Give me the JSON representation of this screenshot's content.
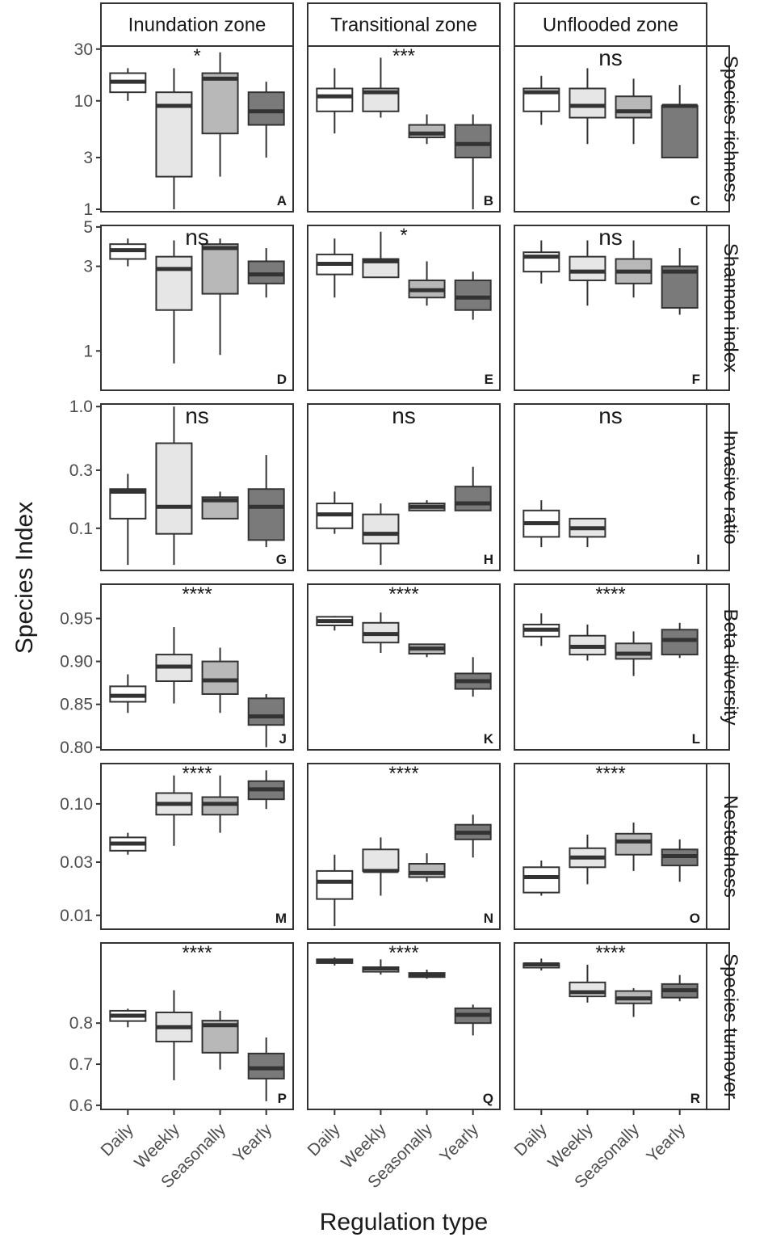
{
  "chart_data": {
    "type": "boxplot",
    "xlabel": "Regulation type",
    "ylabel": "Species Index",
    "categories": [
      "Daily",
      "Weekly",
      "Seasonally",
      "Yearly"
    ],
    "zones": [
      "Inundation zone",
      "Transitional zone",
      "Unflooded zone"
    ],
    "fills": [
      "#ffffff",
      "#e6e6e6",
      "#b8b8b8",
      "#7a7a7a"
    ],
    "rows": [
      {
        "name": "Species richness",
        "scale": "log",
        "ylim": [
          0.95,
          32
        ],
        "ticks": [
          1,
          3,
          10,
          30
        ],
        "tick_labels": [
          "1",
          "3",
          "10",
          "30"
        ],
        "panels": [
          {
            "letter": "A",
            "sig": "*",
            "boxes": [
              {
                "min": 10,
                "q1": 12,
                "median": 15,
                "q3": 18,
                "max": 20
              },
              {
                "min": 1,
                "q1": 2,
                "median": 9,
                "q3": 12,
                "max": 20
              },
              {
                "min": 2,
                "q1": 5,
                "median": 16,
                "q3": 18,
                "max": 28
              },
              {
                "min": 3,
                "q1": 6,
                "median": 8,
                "q3": 12,
                "max": 15
              }
            ]
          },
          {
            "letter": "B",
            "sig": "***",
            "boxes": [
              {
                "min": 5,
                "q1": 8,
                "median": 11,
                "q3": 13,
                "max": 20
              },
              {
                "min": 7,
                "q1": 8,
                "median": 12,
                "q3": 13,
                "max": 25
              },
              {
                "min": 4,
                "q1": 4.6,
                "median": 5,
                "q3": 6,
                "max": 7.5
              },
              {
                "min": 1,
                "q1": 3,
                "median": 4,
                "q3": 6,
                "max": 7.5
              }
            ]
          },
          {
            "letter": "C",
            "sig": "ns",
            "boxes": [
              {
                "min": 6,
                "q1": 8,
                "median": 12,
                "q3": 13,
                "max": 17
              },
              {
                "min": 4,
                "q1": 7,
                "median": 9,
                "q3": 13,
                "max": 20
              },
              {
                "min": 4,
                "q1": 7,
                "median": 8,
                "q3": 11,
                "max": 16
              },
              {
                "min": 3,
                "q1": 3,
                "median": 9,
                "q3": 9,
                "max": 14
              }
            ]
          }
        ]
      },
      {
        "name": "Shannon index",
        "scale": "log",
        "ylim": [
          0.6,
          5.1
        ],
        "ticks": [
          1,
          3,
          5
        ],
        "tick_labels": [
          "1",
          "3",
          "5"
        ],
        "panels": [
          {
            "letter": "D",
            "sig": "ns",
            "boxes": [
              {
                "min": 3,
                "q1": 3.3,
                "median": 3.7,
                "q3": 4,
                "max": 4.3
              },
              {
                "min": 0.85,
                "q1": 1.7,
                "median": 2.9,
                "q3": 3.4,
                "max": 4.2
              },
              {
                "min": 0.95,
                "q1": 2.1,
                "median": 3.8,
                "q3": 4,
                "max": 4.3
              },
              {
                "min": 2,
                "q1": 2.4,
                "median": 2.7,
                "q3": 3.2,
                "max": 3.8
              }
            ]
          },
          {
            "letter": "E",
            "sig": "*",
            "boxes": [
              {
                "min": 2,
                "q1": 2.7,
                "median": 3.1,
                "q3": 3.5,
                "max": 4.3
              },
              {
                "min": 2.6,
                "q1": 2.6,
                "median": 3.2,
                "q3": 3.3,
                "max": 4.7
              },
              {
                "min": 1.8,
                "q1": 2,
                "median": 2.2,
                "q3": 2.5,
                "max": 3.2
              },
              {
                "min": 1.5,
                "q1": 1.7,
                "median": 2,
                "q3": 2.5,
                "max": 2.8
              }
            ]
          },
          {
            "letter": "F",
            "sig": "ns",
            "boxes": [
              {
                "min": 2.4,
                "q1": 2.8,
                "median": 3.4,
                "q3": 3.6,
                "max": 4.2
              },
              {
                "min": 1.8,
                "q1": 2.5,
                "median": 2.8,
                "q3": 3.4,
                "max": 4.2
              },
              {
                "min": 2,
                "q1": 2.4,
                "median": 2.8,
                "q3": 3.3,
                "max": 4.2
              },
              {
                "min": 1.6,
                "q1": 1.75,
                "median": 2.8,
                "q3": 3,
                "max": 3.8
              }
            ]
          }
        ]
      },
      {
        "name": "Invasive ratio",
        "scale": "log",
        "ylim": [
          0.045,
          1.05
        ],
        "ticks": [
          0.1,
          0.3,
          1.0
        ],
        "tick_labels": [
          "0.1",
          "0.3",
          "1.0"
        ],
        "panels": [
          {
            "letter": "G",
            "sig": "ns",
            "boxes": [
              {
                "min": 0.05,
                "q1": 0.12,
                "median": 0.2,
                "q3": 0.21,
                "max": 0.28
              },
              {
                "min": 0.05,
                "q1": 0.09,
                "median": 0.15,
                "q3": 0.5,
                "max": 1.0
              },
              {
                "min": 0.12,
                "q1": 0.12,
                "median": 0.17,
                "q3": 0.18,
                "max": 0.2
              },
              {
                "min": 0.07,
                "q1": 0.08,
                "median": 0.15,
                "q3": 0.21,
                "max": 0.4
              }
            ]
          },
          {
            "letter": "H",
            "sig": "ns",
            "boxes": [
              {
                "min": 0.09,
                "q1": 0.1,
                "median": 0.13,
                "q3": 0.16,
                "max": 0.2
              },
              {
                "min": 0.05,
                "q1": 0.075,
                "median": 0.09,
                "q3": 0.13,
                "max": 0.16
              },
              {
                "min": 0.14,
                "q1": 0.14,
                "median": 0.15,
                "q3": 0.16,
                "max": 0.17
              },
              {
                "min": 0.14,
                "q1": 0.14,
                "median": 0.16,
                "q3": 0.22,
                "max": 0.32
              }
            ]
          },
          {
            "letter": "I",
            "sig": "ns",
            "boxes": [
              {
                "min": 0.07,
                "q1": 0.085,
                "median": 0.11,
                "q3": 0.14,
                "max": 0.17
              },
              {
                "min": 0.07,
                "q1": 0.085,
                "median": 0.1,
                "q3": 0.12,
                "max": 0.12
              }
            ]
          }
        ]
      },
      {
        "name": "Beta diversity",
        "scale": "linear",
        "ylim": [
          0.797,
          0.99
        ],
        "ticks": [
          0.8,
          0.85,
          0.9,
          0.95
        ],
        "tick_labels": [
          "0.80",
          "0.85",
          "0.90",
          "0.95"
        ],
        "panels": [
          {
            "letter": "J",
            "sig": "****",
            "boxes": [
              {
                "min": 0.84,
                "q1": 0.853,
                "median": 0.86,
                "q3": 0.871,
                "max": 0.885
              },
              {
                "min": 0.851,
                "q1": 0.877,
                "median": 0.894,
                "q3": 0.908,
                "max": 0.94
              },
              {
                "min": 0.84,
                "q1": 0.862,
                "median": 0.878,
                "q3": 0.9,
                "max": 0.916
              },
              {
                "min": 0.8,
                "q1": 0.826,
                "median": 0.836,
                "q3": 0.857,
                "max": 0.862
              }
            ]
          },
          {
            "letter": "K",
            "sig": "****",
            "boxes": [
              {
                "min": 0.936,
                "q1": 0.942,
                "median": 0.947,
                "q3": 0.952,
                "max": 0.953
              },
              {
                "min": 0.91,
                "q1": 0.922,
                "median": 0.932,
                "q3": 0.945,
                "max": 0.957
              },
              {
                "min": 0.905,
                "q1": 0.909,
                "median": 0.915,
                "q3": 0.92,
                "max": 0.92
              },
              {
                "min": 0.859,
                "q1": 0.868,
                "median": 0.877,
                "q3": 0.886,
                "max": 0.905
              }
            ]
          },
          {
            "letter": "L",
            "sig": "****",
            "boxes": [
              {
                "min": 0.918,
                "q1": 0.929,
                "median": 0.937,
                "q3": 0.943,
                "max": 0.956
              },
              {
                "min": 0.901,
                "q1": 0.908,
                "median": 0.917,
                "q3": 0.93,
                "max": 0.943
              },
              {
                "min": 0.883,
                "q1": 0.903,
                "median": 0.909,
                "q3": 0.921,
                "max": 0.935
              },
              {
                "min": 0.904,
                "q1": 0.908,
                "median": 0.925,
                "q3": 0.937,
                "max": 0.945
              }
            ]
          }
        ]
      },
      {
        "name": "Nestedness",
        "scale": "log",
        "ylim": [
          0.0075,
          0.23
        ],
        "ticks": [
          0.01,
          0.03,
          0.1
        ],
        "tick_labels": [
          "0.01",
          "0.03",
          "0.10"
        ],
        "panels": [
          {
            "letter": "M",
            "sig": "****",
            "boxes": [
              {
                "min": 0.035,
                "q1": 0.038,
                "median": 0.044,
                "q3": 0.05,
                "max": 0.055
              },
              {
                "min": 0.042,
                "q1": 0.08,
                "median": 0.1,
                "q3": 0.125,
                "max": 0.18
              },
              {
                "min": 0.055,
                "q1": 0.08,
                "median": 0.1,
                "q3": 0.115,
                "max": 0.18
              },
              {
                "min": 0.09,
                "q1": 0.11,
                "median": 0.135,
                "q3": 0.16,
                "max": 0.2
              }
            ]
          },
          {
            "letter": "N",
            "sig": "****",
            "boxes": [
              {
                "min": 0.008,
                "q1": 0.014,
                "median": 0.02,
                "q3": 0.025,
                "max": 0.035
              },
              {
                "min": 0.015,
                "q1": 0.025,
                "median": 0.025,
                "q3": 0.039,
                "max": 0.05
              },
              {
                "min": 0.02,
                "q1": 0.022,
                "median": 0.024,
                "q3": 0.029,
                "max": 0.036
              },
              {
                "min": 0.033,
                "q1": 0.048,
                "median": 0.055,
                "q3": 0.065,
                "max": 0.08
              }
            ]
          },
          {
            "letter": "O",
            "sig": "****",
            "boxes": [
              {
                "min": 0.015,
                "q1": 0.016,
                "median": 0.022,
                "q3": 0.027,
                "max": 0.031
              },
              {
                "min": 0.019,
                "q1": 0.027,
                "median": 0.033,
                "q3": 0.04,
                "max": 0.053
              },
              {
                "min": 0.025,
                "q1": 0.035,
                "median": 0.046,
                "q3": 0.054,
                "max": 0.068
              },
              {
                "min": 0.02,
                "q1": 0.028,
                "median": 0.034,
                "q3": 0.039,
                "max": 0.048
              }
            ]
          }
        ]
      },
      {
        "name": "Species turnover",
        "scale": "linear",
        "ylim": [
          0.59,
          0.995
        ],
        "ticks": [
          0.6,
          0.7,
          0.8
        ],
        "tick_labels": [
          "0.6",
          "0.7",
          "0.8"
        ],
        "panels": [
          {
            "letter": "P",
            "sig": "****",
            "boxes": [
              {
                "min": 0.79,
                "q1": 0.805,
                "median": 0.818,
                "q3": 0.83,
                "max": 0.835
              },
              {
                "min": 0.661,
                "q1": 0.755,
                "median": 0.79,
                "q3": 0.826,
                "max": 0.88
              },
              {
                "min": 0.687,
                "q1": 0.728,
                "median": 0.795,
                "q3": 0.806,
                "max": 0.83
              },
              {
                "min": 0.61,
                "q1": 0.665,
                "median": 0.69,
                "q3": 0.726,
                "max": 0.765
              }
            ]
          },
          {
            "letter": "Q",
            "sig": "****",
            "boxes": [
              {
                "min": 0.94,
                "q1": 0.946,
                "median": 0.952,
                "q3": 0.955,
                "max": 0.96
              },
              {
                "min": 0.918,
                "q1": 0.925,
                "median": 0.933,
                "q3": 0.936,
                "max": 0.955
              },
              {
                "min": 0.908,
                "q1": 0.912,
                "median": 0.917,
                "q3": 0.922,
                "max": 0.93
              },
              {
                "min": 0.77,
                "q1": 0.8,
                "median": 0.82,
                "q3": 0.836,
                "max": 0.845
              }
            ]
          },
          {
            "letter": "R",
            "sig": "****",
            "boxes": [
              {
                "min": 0.928,
                "q1": 0.935,
                "median": 0.943,
                "q3": 0.945,
                "max": 0.957
              },
              {
                "min": 0.85,
                "q1": 0.865,
                "median": 0.875,
                "q3": 0.899,
                "max": 0.942
              },
              {
                "min": 0.815,
                "q1": 0.848,
                "median": 0.86,
                "q3": 0.878,
                "max": 0.885
              },
              {
                "min": 0.853,
                "q1": 0.862,
                "median": 0.88,
                "q3": 0.895,
                "max": 0.917
              }
            ]
          }
        ]
      }
    ]
  }
}
